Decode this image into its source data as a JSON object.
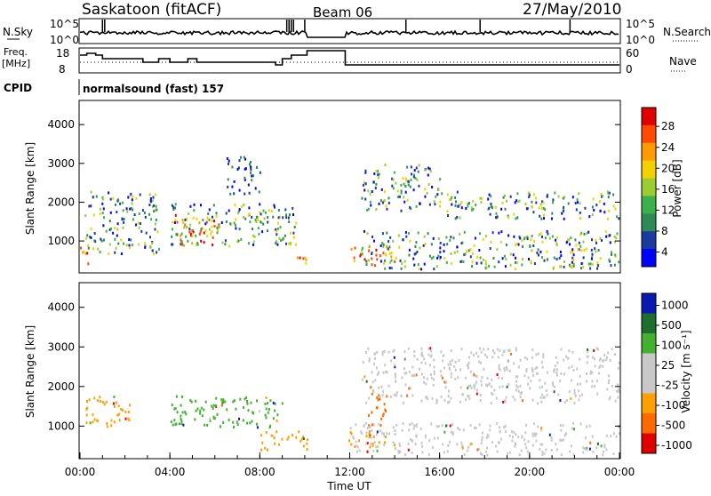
{
  "header": {
    "station": "Saskatoon (fitACF)",
    "beam": "Beam 06",
    "date": "27/May/2010"
  },
  "panels": {
    "nsky": {
      "label": "N.Sky",
      "left_ticks": [
        "10^5",
        "10^0"
      ],
      "right_ticks": [
        "10^5",
        "10^0"
      ],
      "right_label": "N.Search"
    },
    "freq": {
      "label_line1": "Freq.",
      "label_line2": "[MHz]",
      "left_ticks": [
        "18",
        "8"
      ],
      "right_ticks": [
        "60",
        "0"
      ],
      "right_label": "Nave"
    },
    "cpid": {
      "label": "CPID",
      "value": "normalsound (fast) 157"
    }
  },
  "power_colorbar": {
    "label": "Power [dB]",
    "ticks": [
      "28",
      "24",
      "20",
      "16",
      "12",
      "8",
      "4"
    ],
    "colors": [
      "#e00000",
      "#ff4a00",
      "#ff9a00",
      "#f3d000",
      "#9acd32",
      "#3cb04a",
      "#2e8b57",
      "#1a3aa0",
      "#0000ff"
    ]
  },
  "velocity_colorbar": {
    "label": "Velocity [m s⁻¹]",
    "ticks": [
      "1000",
      "500",
      "100",
      "25",
      "-25",
      "-100",
      "-500",
      "-1000"
    ],
    "colors": [
      "#0a1ab0",
      "#1e6e2e",
      "#44b030",
      "#c8c8c8",
      "#c8c8c8",
      "#ffa000",
      "#ff6a00",
      "#e00000"
    ]
  },
  "chart_data": [
    {
      "type": "heatmap",
      "title": "Power",
      "xlabel": "",
      "ylabel": "Slant Range [km]",
      "y_ticks": [
        "1000",
        "2000",
        "3000",
        "4000"
      ],
      "ylim": [
        200,
        4600
      ],
      "xlim": [
        "00:00",
        "24:00"
      ],
      "colorbar_label": "Power [dB]",
      "data_gap": [
        "10:10",
        "11:50"
      ],
      "regions": [
        {
          "t0": 0.0,
          "t1": 0.4,
          "r0": 300,
          "r1": 900,
          "level": "high"
        },
        {
          "t0": 0.2,
          "t1": 3.5,
          "r0": 700,
          "r1": 2300,
          "level": "mid"
        },
        {
          "t0": 4.2,
          "t1": 6.2,
          "r0": 900,
          "r1": 1700,
          "level": "high"
        },
        {
          "t0": 4.0,
          "t1": 9.6,
          "r0": 900,
          "r1": 2000,
          "level": "mid"
        },
        {
          "t0": 6.5,
          "t1": 8.0,
          "r0": 2200,
          "r1": 3200,
          "level": "low"
        },
        {
          "t0": 9.5,
          "t1": 10.1,
          "r0": 400,
          "r1": 800,
          "level": "high"
        },
        {
          "t0": 11.9,
          "t1": 14.0,
          "r0": 400,
          "r1": 900,
          "level": "high"
        },
        {
          "t0": 12.5,
          "t1": 24.0,
          "r0": 300,
          "r1": 1300,
          "level": "mid"
        },
        {
          "t0": 12.5,
          "t1": 16.0,
          "r0": 1800,
          "r1": 3000,
          "level": "mid"
        },
        {
          "t0": 16.0,
          "t1": 24.0,
          "r0": 1600,
          "r1": 2300,
          "level": "mid"
        }
      ]
    },
    {
      "type": "heatmap",
      "title": "Velocity",
      "xlabel": "Time UT",
      "ylabel": "Slant Range [km]",
      "x_ticks": [
        "00:00",
        "04:00",
        "08:00",
        "12:00",
        "16:00",
        "20:00",
        "00:00"
      ],
      "y_ticks": [
        "1000",
        "2000",
        "3000",
        "4000"
      ],
      "ylim": [
        200,
        4600
      ],
      "xlim": [
        "00:00",
        "24:00"
      ],
      "colorbar_label": "Velocity [m s⁻¹]",
      "data_gap": [
        "10:10",
        "11:50"
      ],
      "regions": [
        {
          "t0": 0.2,
          "t1": 2.2,
          "r0": 1000,
          "r1": 1800,
          "vel": "-100"
        },
        {
          "t0": 3.9,
          "t1": 9.0,
          "r0": 1000,
          "r1": 1800,
          "vel": "100"
        },
        {
          "t0": 8.0,
          "t1": 10.1,
          "r0": 400,
          "r1": 900,
          "vel": "-100"
        },
        {
          "t0": 12.8,
          "t1": 13.6,
          "r0": 1000,
          "r1": 1900,
          "vel": "-500"
        },
        {
          "t0": 11.9,
          "t1": 14.0,
          "r0": 500,
          "r1": 900,
          "vel": "-100"
        },
        {
          "t0": 12.0,
          "t1": 24.0,
          "r0": 300,
          "r1": 1100,
          "vel": "25"
        },
        {
          "t0": 12.5,
          "t1": 24.0,
          "r0": 1600,
          "r1": 3000,
          "vel": "25"
        }
      ]
    }
  ]
}
